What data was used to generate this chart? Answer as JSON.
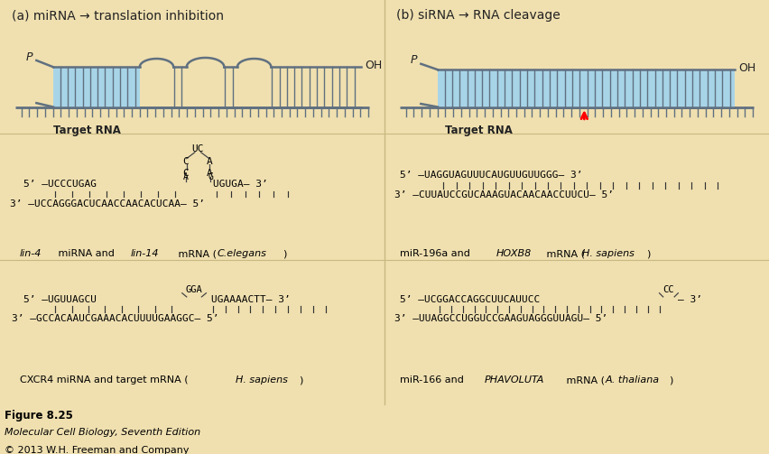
{
  "bg_color": "#f0e0b0",
  "title_a": "(a) miRNA → translation inhibition",
  "title_b": "(b) siRNA → RNA cleavage",
  "fig_caption": "Figure 8.25",
  "fig_book": "Molecular Cell Biology, Seventh Edition",
  "fig_publisher": "© 2013 W.H. Freeman and Company",
  "rna_blue": "#a8d4e8",
  "rna_stroke": "#607080",
  "divider_color": "#c8b880",
  "text_dark": "#222222",
  "panel_border": "#c8b070"
}
